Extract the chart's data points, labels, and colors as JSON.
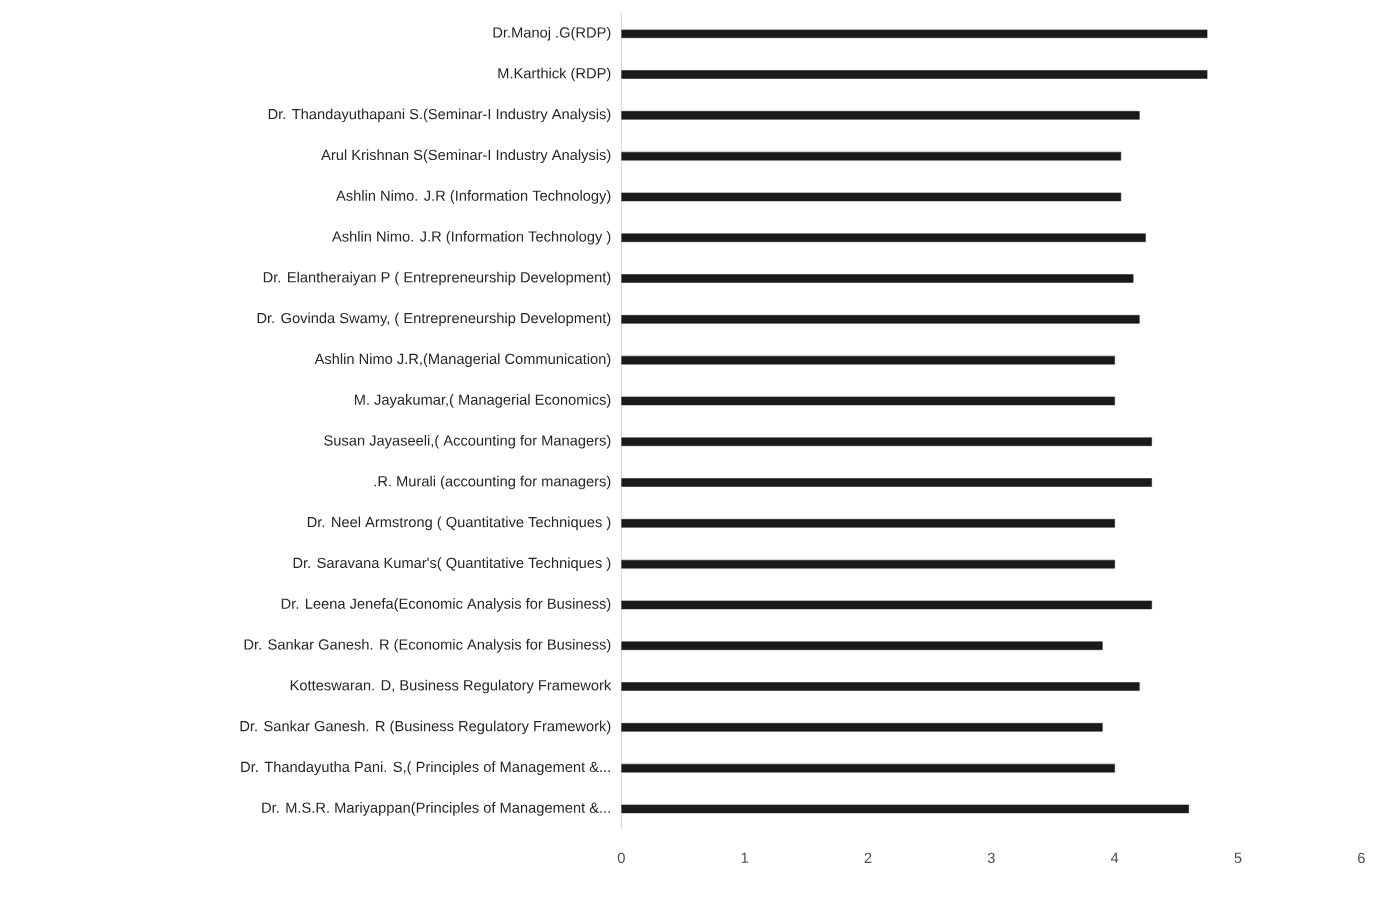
{
  "chart_data": {
    "type": "bar",
    "orientation": "horizontal",
    "categories": [
      "Dr.Manoj .G(RDP)",
      "M.Karthick (RDP)",
      "Dr. Thandayuthapani S.(Seminar-I Industry Analysis)",
      "Arul Krishnan S(Seminar-I Industry Analysis)",
      "Ashlin Nimo. J.R (Information Technology)",
      "Ashlin Nimo. J.R (Information Technology )",
      "Dr. Elantheraiyan P ( Entrepreneurship Development)",
      "Dr. Govinda Swamy, ( Entrepreneurship Development)",
      "Ashlin Nimo J.R,(Managerial Communication)",
      "M. Jayakumar,( Managerial Economics)",
      "Susan Jayaseeli,( Accounting for Managers)",
      ".R. Murali (accounting for managers)",
      "Dr. Neel Armstrong ( Quantitative Techniques  )",
      "Dr. Saravana Kumar's( Quantitative Techniques )",
      "Dr. Leena Jenefa(Economic Analysis for Business)",
      "Dr. Sankar Ganesh. R (Economic Analysis for Business)",
      "Kotteswaran. D, Business Regulatory Framework",
      "Dr. Sankar Ganesh. R (Business Regulatory Framework)",
      "Dr. Thandayutha Pani. S,( Principles of Management &...",
      "Dr. M.S.R. Mariyappan(Principles of Management &..."
    ],
    "values": [
      4.75,
      4.75,
      4.2,
      4.05,
      4.05,
      4.25,
      4.15,
      4.2,
      4.0,
      4.0,
      4.3,
      4.3,
      4.0,
      4.0,
      4.3,
      3.9,
      4.2,
      3.9,
      4.0,
      4.6
    ],
    "color": "#1a1a1a",
    "xlim": [
      0,
      6
    ],
    "xticks": [
      0,
      1,
      2,
      3,
      4,
      5,
      6
    ],
    "grid": false
  }
}
